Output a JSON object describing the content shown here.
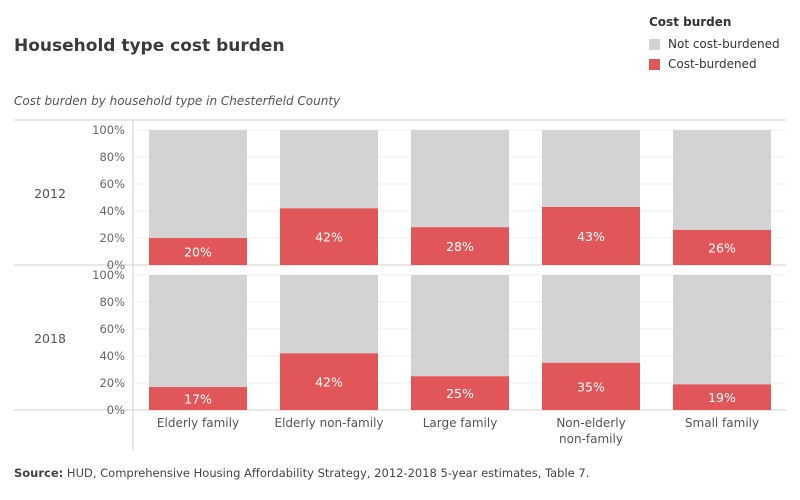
{
  "title": "Household type cost burden",
  "subtitle": "Cost burden by household type in Chesterfield County",
  "legend": {
    "title": "Cost burden",
    "items": [
      {
        "label": "Not cost-burdened",
        "color": "#d3d3d3"
      },
      {
        "label": "Cost-burdened",
        "color": "#e15759"
      }
    ]
  },
  "source": {
    "label": "Source:",
    "text": " HUD, Comprehensive Housing Affordability Strategy, 2012-2018 5-year estimates, Table 7."
  },
  "chart_data": {
    "type": "bar",
    "stacked": true,
    "normalized": true,
    "categories": [
      [
        "Elderly family"
      ],
      [
        "Elderly non-family"
      ],
      [
        "Large family"
      ],
      [
        "Non-elderly",
        "non-family"
      ],
      [
        "Small family"
      ]
    ],
    "y_ticks": [
      "0%",
      "20%",
      "40%",
      "60%",
      "80%",
      "100%"
    ],
    "ylim": [
      0,
      100
    ],
    "panels": [
      {
        "label": "2012",
        "values": [
          20,
          42,
          28,
          43,
          26
        ],
        "labels": [
          "20%",
          "42%",
          "28%",
          "43%",
          "26%"
        ]
      },
      {
        "label": "2018",
        "values": [
          17,
          42,
          25,
          35,
          19
        ],
        "labels": [
          "17%",
          "42%",
          "25%",
          "35%",
          "19%"
        ]
      }
    ],
    "series": [
      {
        "name": "Not cost-burdened",
        "color": "#d3d3d3"
      },
      {
        "name": "Cost-burdened",
        "color": "#e15759"
      }
    ],
    "grid": true
  }
}
